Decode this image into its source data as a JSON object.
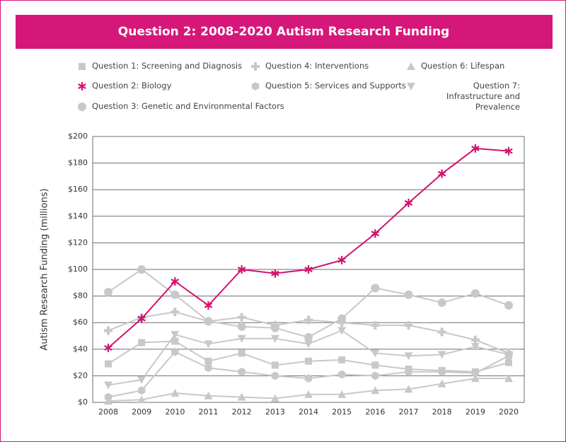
{
  "chart_data": {
    "type": "line",
    "title": "Question 2: 2008-2020 Autism Research Funding",
    "y_label": "Autism Research Funding (millions)",
    "categories": [
      "2008",
      "2009",
      "2010",
      "2011",
      "2012",
      "2013",
      "2014",
      "2015",
      "2016",
      "2017",
      "2018",
      "2019",
      "2020"
    ],
    "ylim": [
      0,
      200
    ],
    "yticks": [
      {
        "value": 0,
        "label": "$0"
      },
      {
        "value": 20,
        "label": "$20"
      },
      {
        "value": 40,
        "label": "$40"
      },
      {
        "value": 60,
        "label": "$60"
      },
      {
        "value": 80,
        "label": "$80"
      },
      {
        "value": 100,
        "label": "$100"
      },
      {
        "value": 120,
        "label": "$120"
      },
      {
        "value": 140,
        "label": "$140"
      },
      {
        "value": 160,
        "label": "$160"
      },
      {
        "value": 180,
        "label": "$180"
      },
      {
        "value": 200,
        "label": "$200"
      }
    ],
    "grid": true,
    "series": [
      {
        "name": "Question 1: Screening and Diagnosis",
        "color": "#c8c8c8",
        "marker": "square",
        "values": [
          29,
          45,
          46,
          31,
          37,
          28,
          31,
          32,
          28,
          25,
          24,
          23,
          30
        ]
      },
      {
        "name": "Question 2: Biology",
        "color": "#d1136f",
        "marker": "asterisk",
        "values": [
          41,
          63,
          91,
          73,
          100,
          97,
          100,
          107,
          127,
          150,
          172,
          191,
          189
        ]
      },
      {
        "name": "Question 3: Genetic and Environmental Factors",
        "color": "#c8c8c8",
        "marker": "circle",
        "values": [
          83,
          100,
          81,
          61,
          57,
          56,
          49,
          63,
          86,
          81,
          75,
          82,
          73
        ]
      },
      {
        "name": "Question 4: Interventions",
        "color": "#c8c8c8",
        "marker": "plus",
        "values": [
          54,
          64,
          68,
          61,
          64,
          58,
          62,
          60,
          58,
          58,
          53,
          47,
          37
        ]
      },
      {
        "name": "Question 5: Services and Supports",
        "color": "#c8c8c8",
        "marker": "hexagon",
        "values": [
          4,
          9,
          38,
          26,
          23,
          20,
          18,
          21,
          20,
          23,
          23,
          22,
          35
        ]
      },
      {
        "name": "Question 6: Lifespan",
        "color": "#c8c8c8",
        "marker": "triangle",
        "values": [
          1,
          2,
          7,
          5,
          4,
          3,
          6,
          6,
          9,
          10,
          14,
          18,
          18
        ]
      },
      {
        "name": "Question 7: Infrastructure and Prevalence",
        "color": "#c8c8c8",
        "marker": "triangle-down",
        "values": [
          13,
          17,
          51,
          44,
          48,
          48,
          44,
          54,
          37,
          35,
          36,
          42,
          36
        ]
      }
    ]
  }
}
